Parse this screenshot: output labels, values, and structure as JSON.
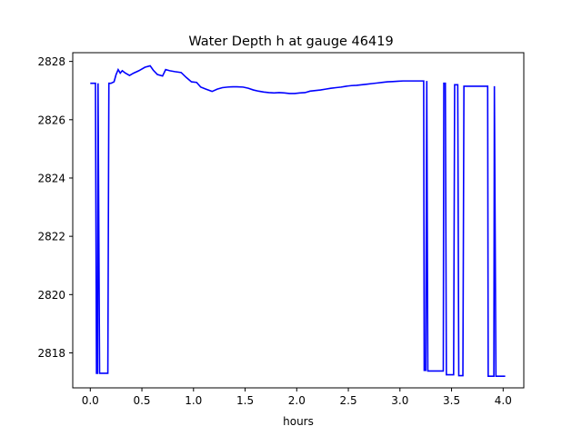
{
  "chart_data": {
    "type": "line",
    "title": "Water Depth h at gauge 46419",
    "xlabel": "hours",
    "ylabel": "",
    "xlim": [
      -0.17,
      4.2
    ],
    "ylim": [
      2816.8,
      2828.3
    ],
    "xticks": [
      0.0,
      0.5,
      1.0,
      1.5,
      2.0,
      2.5,
      3.0,
      3.5,
      4.0
    ],
    "xtick_labels": [
      "0.0",
      "0.5",
      "1.0",
      "1.5",
      "2.0",
      "2.5",
      "3.0",
      "3.5",
      "4.0"
    ],
    "yticks": [
      2818,
      2820,
      2822,
      2824,
      2826,
      2828
    ],
    "ytick_labels": [
      "2818",
      "2820",
      "2822",
      "2824",
      "2826",
      "2828"
    ],
    "grid": false,
    "legend": "none",
    "series": [
      {
        "color": "#0000ff",
        "x": [
          0.0,
          0.05,
          0.06,
          0.07,
          0.075,
          0.09,
          0.1,
          0.17,
          0.18,
          0.2,
          0.23,
          0.25,
          0.27,
          0.29,
          0.31,
          0.34,
          0.38,
          0.42,
          0.47,
          0.53,
          0.58,
          0.61,
          0.65,
          0.7,
          0.73,
          0.77,
          0.82,
          0.88,
          0.93,
          0.98,
          1.03,
          1.07,
          1.12,
          1.18,
          1.23,
          1.28,
          1.33,
          1.38,
          1.42,
          1.48,
          1.53,
          1.58,
          1.63,
          1.68,
          1.73,
          1.78,
          1.83,
          1.88,
          1.93,
          1.98,
          2.03,
          2.08,
          2.13,
          2.18,
          2.23,
          2.28,
          2.33,
          2.38,
          2.43,
          2.48,
          2.53,
          2.58,
          2.63,
          2.68,
          2.73,
          2.78,
          2.83,
          2.88,
          2.93,
          2.98,
          3.03,
          3.08,
          3.13,
          3.18,
          3.23,
          3.235,
          3.25,
          3.26,
          3.27,
          3.42,
          3.425,
          3.44,
          3.45,
          3.52,
          3.53,
          3.56,
          3.57,
          3.61,
          3.62,
          3.85,
          3.855,
          3.9,
          3.91,
          3.915,
          3.93,
          4.02
        ],
        "y": [
          2827.25,
          2827.25,
          2817.3,
          2817.3,
          2827.25,
          2817.3,
          2817.3,
          2817.3,
          2827.25,
          2827.25,
          2827.3,
          2827.55,
          2827.72,
          2827.6,
          2827.68,
          2827.6,
          2827.52,
          2827.6,
          2827.68,
          2827.8,
          2827.85,
          2827.7,
          2827.55,
          2827.5,
          2827.72,
          2827.68,
          2827.65,
          2827.62,
          2827.45,
          2827.3,
          2827.28,
          2827.12,
          2827.05,
          2826.97,
          2827.05,
          2827.1,
          2827.12,
          2827.13,
          2827.13,
          2827.12,
          2827.08,
          2827.02,
          2826.98,
          2826.95,
          2826.93,
          2826.92,
          2826.93,
          2826.92,
          2826.9,
          2826.9,
          2826.92,
          2826.93,
          2826.98,
          2827.0,
          2827.02,
          2827.05,
          2827.08,
          2827.1,
          2827.12,
          2827.15,
          2827.17,
          2827.18,
          2827.2,
          2827.22,
          2827.24,
          2827.26,
          2827.28,
          2827.3,
          2827.31,
          2827.32,
          2827.33,
          2827.33,
          2827.33,
          2827.33,
          2827.33,
          2817.4,
          2817.4,
          2827.33,
          2817.38,
          2817.38,
          2827.25,
          2827.25,
          2817.25,
          2817.25,
          2827.2,
          2827.2,
          2817.22,
          2817.22,
          2827.15,
          2827.15,
          2817.2,
          2817.2,
          2817.2,
          2827.15,
          2817.2,
          2817.2
        ]
      }
    ]
  }
}
